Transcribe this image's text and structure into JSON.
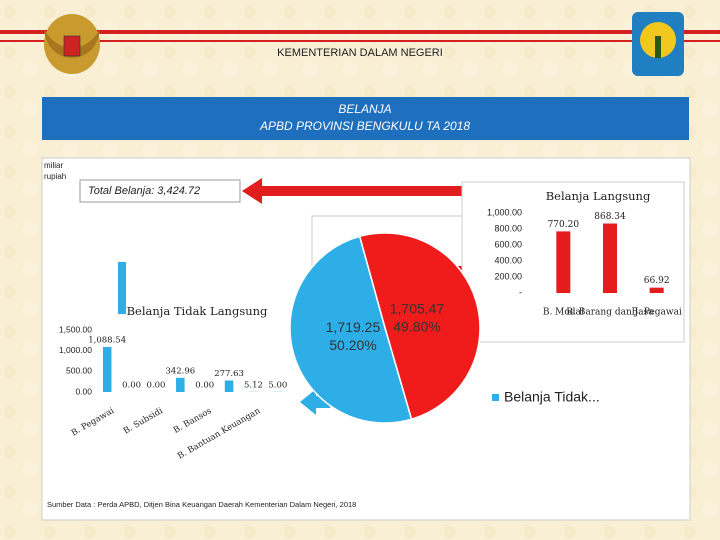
{
  "header": {
    "ministry": "KEMENTERIAN DALAM NEGERI",
    "title_line1": "BELANJA",
    "title_line2": "APBD PROVINSI BENGKULU TA 2018"
  },
  "unit_label": "miliar rupiah",
  "total_label": "Total Belanja:  3,424.72",
  "source": "Sumber Data : Perda APBD, Ditjen Bina Keuangan Daerah Kementerian Dalam Negeri, 2018",
  "chart_data": [
    {
      "type": "bar",
      "title": "Belanja Tidak Langsung",
      "color": "#2eaee6",
      "categories": [
        "B. Pegawai",
        null,
        "B. Subsidi",
        null,
        "B. Bansos",
        null,
        "B. Bantuan Keuangan",
        null
      ],
      "values": [
        1088.54,
        0,
        0,
        342.96,
        0,
        277.63,
        5.12,
        5
      ],
      "value_labels": [
        "1,088.54",
        "0.00",
        "0.00",
        "342.96",
        "0.00",
        "277.63",
        "5.12",
        "5.00"
      ],
      "ylim": [
        0,
        1500
      ],
      "yticks": [
        {
          "value": 0,
          "label": "0.00"
        },
        {
          "value": 500,
          "label": "500.00"
        },
        {
          "value": 1000,
          "label": "1,000.00"
        },
        {
          "value": 1500,
          "label": "1,500.00"
        }
      ]
    },
    {
      "type": "pie",
      "categories": [
        "Belanja Tidak...",
        null
      ],
      "values": [
        1719.25,
        1705.47
      ],
      "value_labels": [
        "1,719.25",
        "1,705.47"
      ],
      "percents": [
        50.2,
        49.8
      ],
      "percent_labels": [
        "50.20%",
        "49.80%"
      ],
      "colors": [
        "#2eaee6",
        "#f01c1c"
      ]
    },
    {
      "type": "bar",
      "title": "Belanja Langsung",
      "color": "#e41c1c",
      "categories": [
        "B. Modal",
        "B. Barang dan Jasa",
        "B. Pegawai"
      ],
      "values": [
        770.2,
        868.34,
        66.92
      ],
      "value_labels": [
        "770.20",
        "868.34",
        "66.92"
      ],
      "ylim": [
        0,
        1000
      ],
      "yticks": [
        {
          "value": 0,
          "label": "-"
        },
        {
          "value": 200,
          "label": "200.00"
        },
        {
          "value": 400,
          "label": "400.00"
        },
        {
          "value": 600,
          "label": "600.00"
        },
        {
          "value": 800,
          "label": "800.00"
        },
        {
          "value": 1000,
          "label": "1,000.00"
        }
      ]
    }
  ]
}
